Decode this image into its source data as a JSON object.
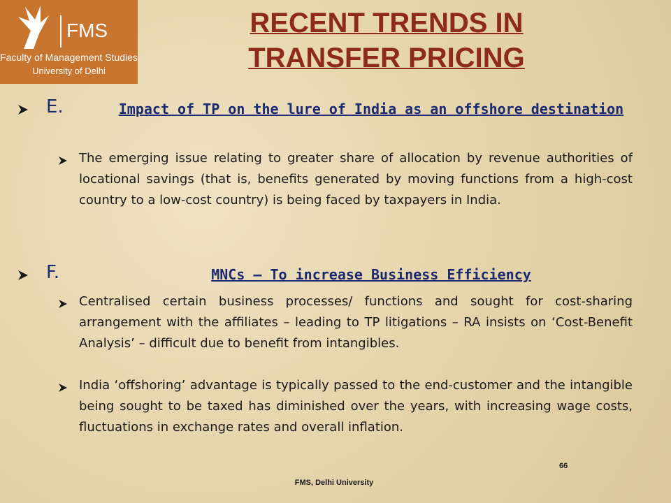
{
  "logo": {
    "acronym": "FMS",
    "name": "Faculty of Management Studies",
    "university": "University of Delhi"
  },
  "title_lines": [
    "RECENT TRENDS IN",
    "TRANSFER PRICING"
  ],
  "sections": [
    {
      "label": "E.",
      "heading": "Impact of TP on the lure of India as an offshore destination",
      "bullets": [
        "The emerging issue relating to greater share of allocation by revenue authorities of locational savings (that is, benefits generated by moving functions from a high-cost country to a low-cost country) is being faced by taxpayers in India."
      ]
    },
    {
      "label": "F.",
      "heading": "MNCs – To increase Business Efficiency",
      "bullets": [
        "Centralised certain business processes/ functions and sought for cost-sharing arrangement with the affiliates – leading to TP litigations – RA insists on ‘Cost-Benefit Analysis’ – difficult due to benefit from intangibles.",
        "India ‘offshoring’ advantage is typically passed to the end-customer and the intangible being sought to be taxed has diminished over the years, with increasing wage costs, fluctuations in exchange rates and overall inflation."
      ]
    }
  ],
  "page_number": 66,
  "footer": "FMS, Delhi University"
}
